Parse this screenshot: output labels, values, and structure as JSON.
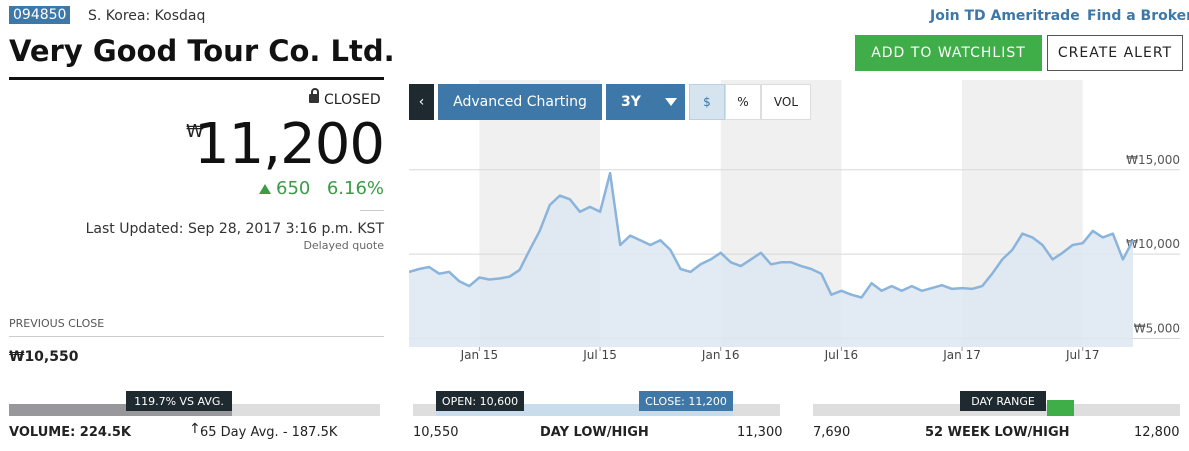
{
  "header": {
    "ticker": "094850",
    "exchange": "S. Korea: Kosdaq",
    "links": [
      "Join TD Ameritrade",
      "Find a Broker"
    ],
    "name": "Very Good Tour Co. Ltd.",
    "buttons": [
      "ADD TO WATCHLIST",
      "CREATE ALERT"
    ]
  },
  "quote": {
    "status": "CLOSED",
    "currency": "₩",
    "price": "11,200",
    "change": "650",
    "change_pct": "6.16%",
    "last_updated": "Last Updated: Sep 28, 2017 3:16 p.m. KST",
    "delay": "Delayed quote",
    "previous_close_label": "PREVIOUS CLOSE",
    "previous_close": "₩10,550"
  },
  "controls": {
    "advanced": "Advanced Charting",
    "range": "3Y",
    "modes": [
      "$",
      "%",
      "VOL"
    ]
  },
  "chart_data": {
    "type": "line",
    "color": "#8ab4dc",
    "fill": "#dde8f1",
    "grid": true,
    "values": [
      8950,
      9120,
      9240,
      8840,
      8950,
      8390,
      8110,
      8620,
      8500,
      8560,
      8670,
      9070,
      10250,
      11380,
      12910,
      13470,
      13250,
      12510,
      12800,
      12510,
      14800,
      10540,
      11100,
      10820,
      10540,
      10820,
      10250,
      9120,
      8950,
      9400,
      9690,
      10080,
      9520,
      9290,
      9690,
      10080,
      9400,
      9520,
      9520,
      9290,
      9120,
      8840,
      7600,
      7830,
      7600,
      7430,
      8280,
      7830,
      8110,
      7830,
      8110,
      7830,
      7990,
      8160,
      7940,
      7990,
      7940,
      8110,
      8840,
      9690,
      10250,
      11210,
      10990,
      10540,
      9690,
      10080,
      10540,
      10650,
      11380,
      10990,
      11210,
      9690,
      10820
    ],
    "xlim": [
      0,
      72
    ],
    "xticks": [
      {
        "value": 7,
        "label": "Jan 15"
      },
      {
        "value": 19,
        "label": "Jul 15"
      },
      {
        "value": 31,
        "label": "Jan 16"
      },
      {
        "value": 43,
        "label": "Jul 16"
      },
      {
        "value": 55,
        "label": "Jan 17"
      },
      {
        "value": 67,
        "label": "Jul 17"
      }
    ],
    "ylim": [
      4500,
      17000
    ],
    "yticks": [
      {
        "value": 5000,
        "label": "₩5,000"
      },
      {
        "value": 10000,
        "label": "₩10,000"
      },
      {
        "value": 15000,
        "label": "₩15,000"
      }
    ]
  },
  "volume": {
    "vs_avg": "119.7% VS AVG.",
    "volume": "VOLUME: 224.5K",
    "avg": "65 Day Avg. - 187.5K"
  },
  "day_range": {
    "open": "OPEN: 10,600",
    "close": "CLOSE: 11,200",
    "low": "10,550",
    "label": "DAY LOW/HIGH",
    "high": "11,300"
  },
  "week52": {
    "tag": "DAY RANGE",
    "low": "7,690",
    "label": "52 WEEK LOW/HIGH",
    "high": "12,800"
  }
}
